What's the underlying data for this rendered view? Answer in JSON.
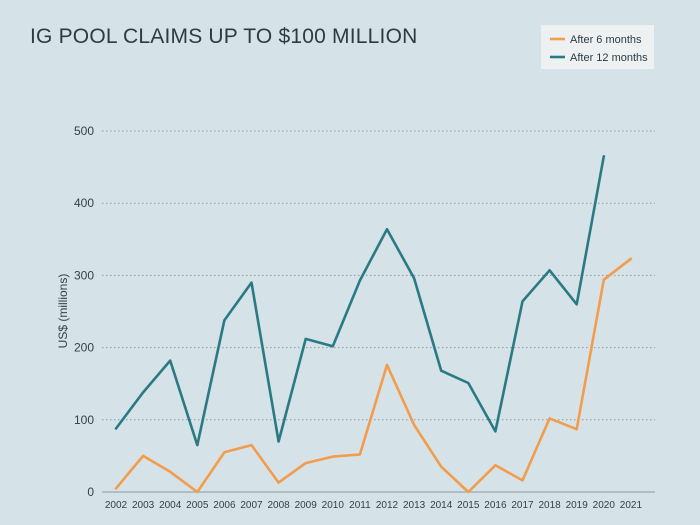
{
  "chart_data": {
    "type": "line",
    "title": "IG POOL CLAIMS UP TO $100 MILLION",
    "ylabel": "US$ (millions)",
    "xlabel": "",
    "ylim": [
      0,
      500
    ],
    "yticks": [
      0,
      100,
      200,
      300,
      400,
      500
    ],
    "grid": true,
    "legend_position": "top-right",
    "categories": [
      "2002",
      "2003",
      "2004",
      "2005",
      "2006",
      "2007",
      "2008",
      "2009",
      "2010",
      "2011",
      "2012",
      "2013",
      "2014",
      "2015",
      "2016",
      "2017",
      "2018",
      "2019",
      "2020",
      "2021"
    ],
    "series": [
      {
        "name": "After 6 months",
        "color": "#f39c4b",
        "values": [
          5,
          50,
          28,
          0,
          55,
          65,
          13,
          40,
          49,
          52,
          176,
          93,
          35,
          0,
          37,
          16,
          102,
          87,
          294,
          323
        ]
      },
      {
        "name": "After 12 months",
        "color": "#2a7a84",
        "values": [
          88,
          138,
          182,
          65,
          238,
          290,
          70,
          212,
          202,
          293,
          364,
          296,
          168,
          151,
          84,
          264,
          307,
          260,
          465,
          null
        ]
      }
    ]
  }
}
